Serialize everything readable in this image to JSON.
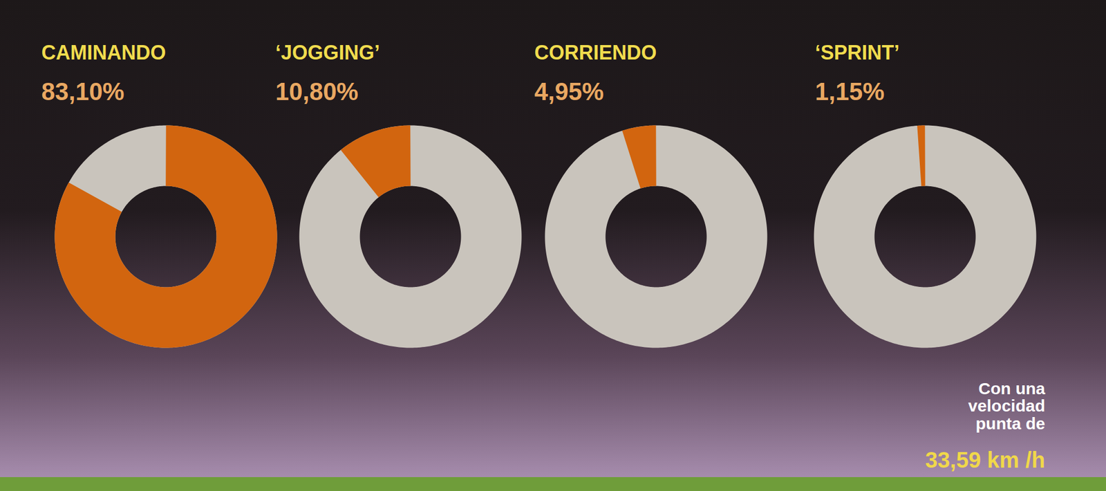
{
  "chart_data": {
    "type": "donut",
    "categories": [
      "CAMINANDO",
      "‘JOGGING’",
      "CORRIENDO",
      "‘SPRINT’"
    ],
    "values": [
      83.1,
      10.8,
      4.95,
      1.15
    ],
    "value_labels": [
      "83,10%",
      "10,80%",
      "4,95%",
      "1,15%"
    ],
    "data_labels": true,
    "color": "#d2650f",
    "annotations": [
      {
        "text": "Con una velocidad punta de",
        "label": "33,59 km /h"
      }
    ]
  }
}
